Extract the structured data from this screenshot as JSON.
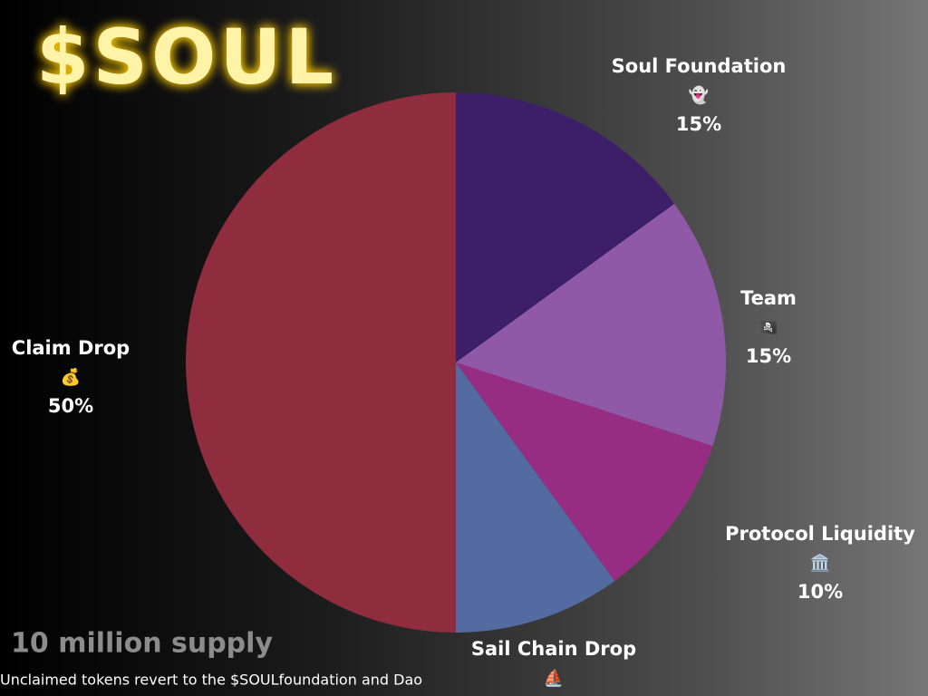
{
  "chart_data": {
    "type": "pie",
    "title": "$SOUL",
    "subtitle": "10 million supply",
    "note": "Unclaimed tokens revert to the $SOULfoundation and Dao",
    "categories": [
      "Soul Foundation",
      "Team",
      "Protocol Liquidity",
      "Sail Chain Drop",
      "Claim Drop"
    ],
    "icons": [
      "👻",
      "🏴‍☠️",
      "🏛️",
      "⛵",
      "💰"
    ],
    "values": [
      15,
      15,
      10,
      10,
      50
    ],
    "value_labels": [
      "15%",
      "15%",
      "10%",
      null,
      "50%"
    ],
    "colors": [
      "#3d1f69",
      "#9059a8",
      "#962d82",
      "#546ba1",
      "#8f2d3e"
    ]
  }
}
